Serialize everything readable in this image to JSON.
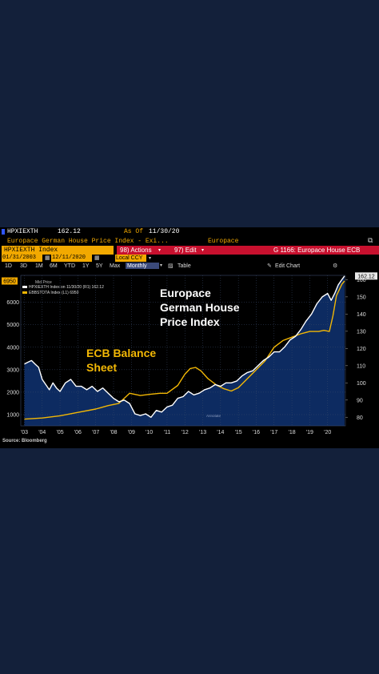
{
  "header": {
    "ticker": "HPXIEXTH",
    "last_value": "162.12",
    "as_of_label": "As Of",
    "as_of_date": "11/30/20",
    "description": "Europace German House Price Index - Exi...",
    "source_name": "Europace",
    "share_icon": "share-window-icon"
  },
  "toolbar": {
    "security": "HPXIEXTH Index",
    "actions_label": "98) Actions",
    "edit_label": "97) Edit",
    "function_title": "G 1166: Europace House ECB"
  },
  "range_bar": {
    "start_date": "01/31/2003",
    "end_date": "12/11/2020",
    "currency": "Local CCY",
    "periods": [
      "1D",
      "3D",
      "1M",
      "6M",
      "YTD",
      "1Y",
      "5Y",
      "Max"
    ],
    "frequency": "Monthly",
    "table_label": "Table",
    "edit_chart_label": "Edit Chart"
  },
  "legend": {
    "title": "Mid Price",
    "line1": "HPXIEXTH Index    on 11/30/20 (R1) 162.12",
    "line2": "EBBSTOTA Index (L1)                    6950",
    "mark": "Annotate"
  },
  "annotations": {
    "house_title_1": "Europace",
    "house_title_2": "German House",
    "house_title_3": "Price Index",
    "ecb_title_1": "ECB Balance",
    "ecb_title_2": "Sheet"
  },
  "source_note": "Source: Bloomberg",
  "colors": {
    "ecb": "#f2b705",
    "house": "#ffffff",
    "tag_orange": "#f2a900",
    "tag_red": "#c8102e",
    "area_fill": "#0e2d66"
  },
  "chart_data": {
    "type": "line",
    "x_unit": "year",
    "x_ticks": [
      "'03",
      "'04",
      "'05",
      "'06",
      "'07",
      "'08",
      "'09",
      "'10",
      "'11",
      "'12",
      "'13",
      "'14",
      "'15",
      "'16",
      "'17",
      "'18",
      "'19",
      "'20"
    ],
    "left_axis": {
      "ticks": [
        "1000",
        "2000",
        "3000",
        "4000",
        "5000",
        "6000"
      ],
      "range": [
        500,
        7200
      ]
    },
    "right_axis": {
      "ticks": [
        "80",
        "90",
        "100",
        "110",
        "120",
        "130",
        "140",
        "150",
        "160"
      ],
      "range": [
        75,
        162.5
      ]
    },
    "last_value_tags": {
      "left": "6950",
      "right": "162.12"
    },
    "series": [
      {
        "name": "ECB Balance Sheet",
        "axis": "left",
        "color": "#f2b705",
        "points": [
          [
            2003.0,
            800
          ],
          [
            2004.0,
            850
          ],
          [
            2005.0,
            950
          ],
          [
            2006.0,
            1100
          ],
          [
            2007.0,
            1250
          ],
          [
            2007.7,
            1400
          ],
          [
            2008.3,
            1500
          ],
          [
            2008.9,
            1950
          ],
          [
            2009.5,
            1850
          ],
          [
            2010.0,
            1900
          ],
          [
            2010.6,
            1950
          ],
          [
            2011.0,
            1950
          ],
          [
            2011.6,
            2300
          ],
          [
            2012.0,
            2800
          ],
          [
            2012.3,
            3050
          ],
          [
            2012.6,
            3100
          ],
          [
            2012.9,
            2950
          ],
          [
            2013.3,
            2600
          ],
          [
            2013.8,
            2300
          ],
          [
            2014.2,
            2150
          ],
          [
            2014.6,
            2050
          ],
          [
            2015.0,
            2200
          ],
          [
            2015.5,
            2600
          ],
          [
            2016.0,
            3000
          ],
          [
            2016.5,
            3400
          ],
          [
            2017.0,
            4000
          ],
          [
            2017.5,
            4300
          ],
          [
            2018.0,
            4450
          ],
          [
            2018.5,
            4600
          ],
          [
            2019.0,
            4700
          ],
          [
            2019.5,
            4700
          ],
          [
            2019.8,
            4750
          ],
          [
            2020.1,
            4700
          ],
          [
            2020.3,
            5400
          ],
          [
            2020.5,
            6300
          ],
          [
            2020.8,
            6800
          ],
          [
            2020.95,
            6950
          ]
        ]
      },
      {
        "name": "Europace German House Price Index",
        "axis": "right",
        "color": "#ffffff",
        "points": [
          [
            2003.0,
            111
          ],
          [
            2003.2,
            112
          ],
          [
            2003.4,
            113
          ],
          [
            2003.6,
            111
          ],
          [
            2003.8,
            109
          ],
          [
            2004.0,
            102
          ],
          [
            2004.2,
            99
          ],
          [
            2004.4,
            96
          ],
          [
            2004.6,
            100
          ],
          [
            2004.8,
            97
          ],
          [
            2005.0,
            95
          ],
          [
            2005.3,
            100
          ],
          [
            2005.6,
            102
          ],
          [
            2005.9,
            98
          ],
          [
            2006.2,
            98
          ],
          [
            2006.5,
            96
          ],
          [
            2006.8,
            98
          ],
          [
            2007.1,
            95
          ],
          [
            2007.4,
            97
          ],
          [
            2007.7,
            94
          ],
          [
            2008.0,
            91
          ],
          [
            2008.3,
            89
          ],
          [
            2008.6,
            90
          ],
          [
            2008.9,
            88
          ],
          [
            2009.2,
            82
          ],
          [
            2009.5,
            81
          ],
          [
            2009.8,
            82
          ],
          [
            2010.1,
            80
          ],
          [
            2010.4,
            84
          ],
          [
            2010.7,
            83
          ],
          [
            2011.0,
            86
          ],
          [
            2011.3,
            87
          ],
          [
            2011.6,
            91
          ],
          [
            2011.9,
            92
          ],
          [
            2012.2,
            95
          ],
          [
            2012.5,
            93
          ],
          [
            2012.8,
            94
          ],
          [
            2013.1,
            96
          ],
          [
            2013.4,
            97
          ],
          [
            2013.7,
            99
          ],
          [
            2014.0,
            98
          ],
          [
            2014.3,
            100
          ],
          [
            2014.6,
            100
          ],
          [
            2014.9,
            101
          ],
          [
            2015.2,
            104
          ],
          [
            2015.5,
            106
          ],
          [
            2015.8,
            107
          ],
          [
            2016.1,
            110
          ],
          [
            2016.4,
            113
          ],
          [
            2016.7,
            115
          ],
          [
            2017.0,
            118
          ],
          [
            2017.3,
            118
          ],
          [
            2017.6,
            121
          ],
          [
            2017.9,
            125
          ],
          [
            2018.2,
            127
          ],
          [
            2018.5,
            131
          ],
          [
            2018.8,
            136
          ],
          [
            2019.1,
            140
          ],
          [
            2019.4,
            146
          ],
          [
            2019.7,
            150
          ],
          [
            2020.0,
            152
          ],
          [
            2020.2,
            148
          ],
          [
            2020.4,
            152
          ],
          [
            2020.6,
            157
          ],
          [
            2020.8,
            160
          ],
          [
            2020.95,
            162.12
          ]
        ]
      }
    ]
  }
}
